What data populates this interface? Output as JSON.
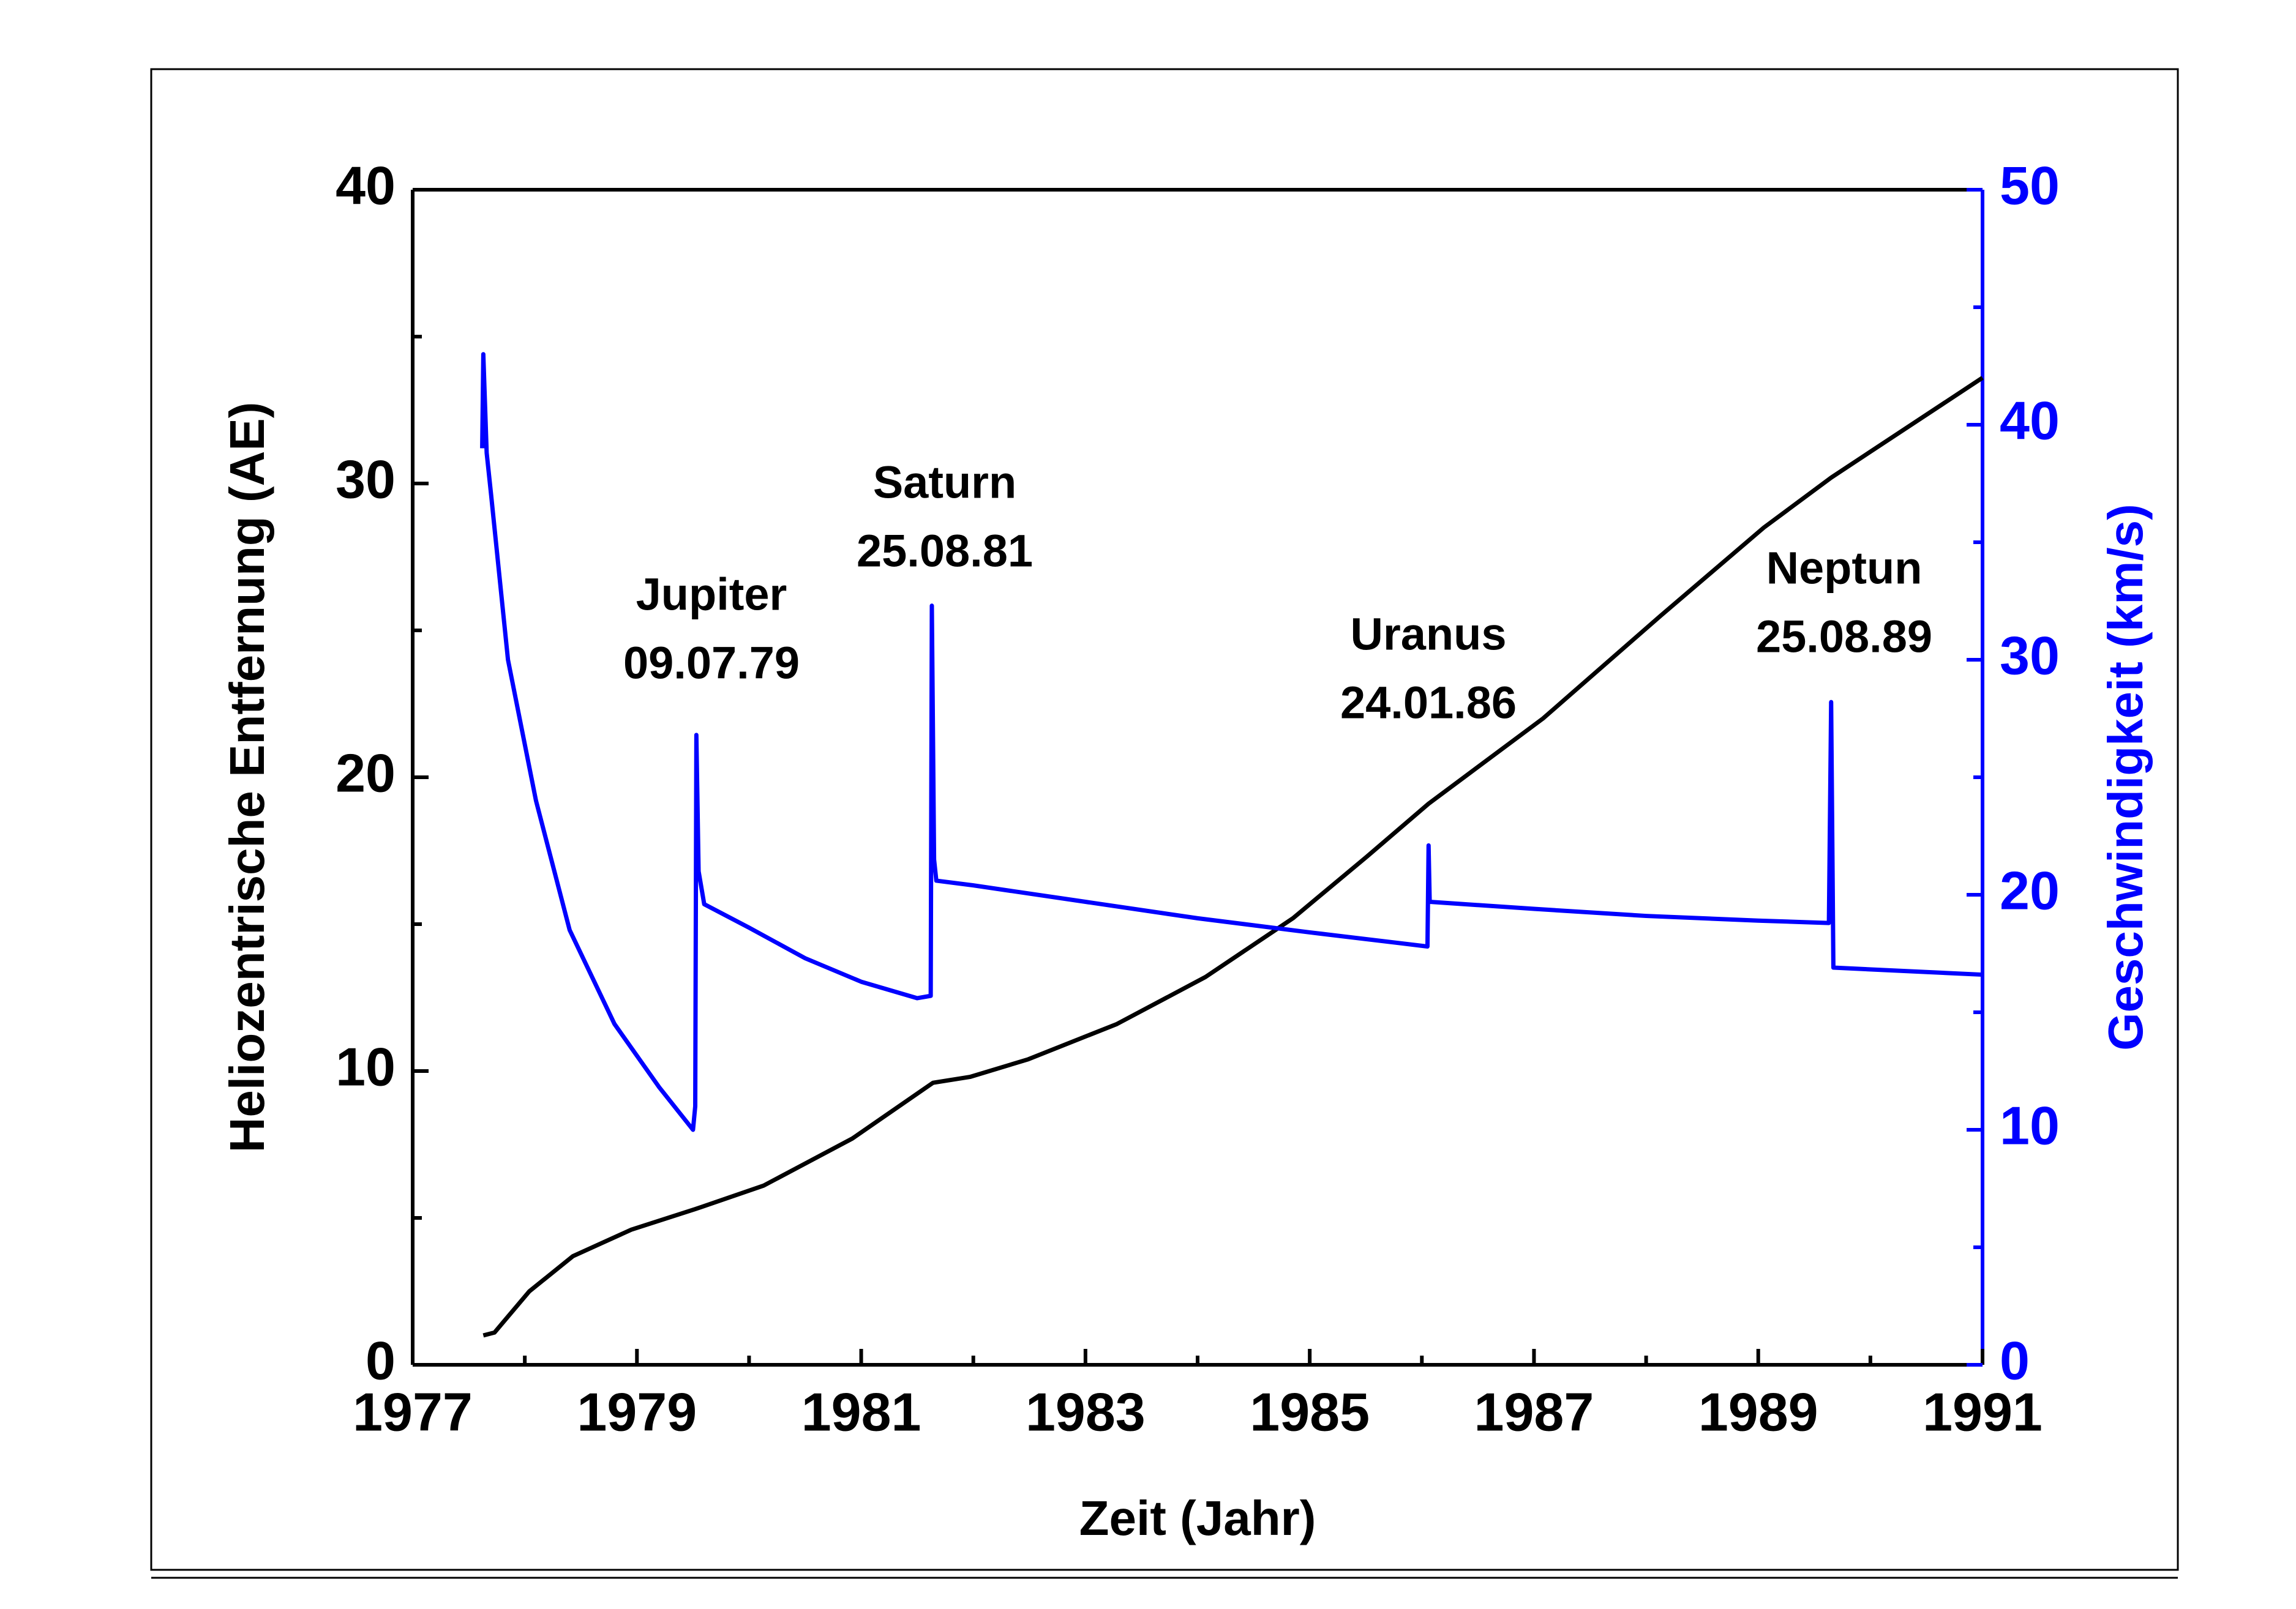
{
  "chart_data": {
    "type": "line",
    "xlabel": "Zeit (Jahr)",
    "ylabel": "Heliozentrische Entfernung (AE)",
    "y2label": "Geschwindigkeit (km/s)",
    "xlim": [
      1977,
      1991
    ],
    "xticks": [
      1977,
      1979,
      1981,
      1983,
      1985,
      1987,
      1989,
      1991
    ],
    "ylim": [
      0,
      40
    ],
    "yticks": [
      0,
      10,
      20,
      30,
      40
    ],
    "y2lim": [
      0,
      50
    ],
    "y2ticks": [
      0,
      10,
      20,
      30,
      40,
      50
    ],
    "series": [
      {
        "color": "#000000",
        "x": [
          1977.63,
          1977.73,
          1978.04,
          1978.43,
          1978.95,
          1979.52,
          1980.13,
          1980.92,
          1981.64,
          1981.97,
          1982.49,
          1983.28,
          1984.07,
          1984.85,
          1985.51,
          1986.06,
          1987.08,
          1988.13,
          1989.05,
          1989.65,
          1991
        ],
        "values": [
          1.0,
          1.1,
          2.5,
          3.7,
          4.6,
          5.3,
          6.1,
          7.7,
          9.6,
          9.8,
          10.4,
          11.6,
          13.2,
          15.2,
          17.3,
          19.1,
          22.0,
          25.5,
          28.5,
          30.2,
          33.6
        ]
      },
      {
        "color": "#0000ff",
        "axis": "y2",
        "x": [
          1977.62,
          1977.63,
          1977.66,
          1977.7,
          1977.85,
          1978.1,
          1978.4,
          1978.8,
          1979.2,
          1979.5,
          1979.52,
          1979.53,
          1979.55,
          1979.6,
          1980.0,
          1980.5,
          1981.0,
          1981.5,
          1981.62,
          1981.63,
          1981.65,
          1981.67,
          1982.0,
          1983.0,
          1984.0,
          1985.0,
          1986.05,
          1986.06,
          1986.07,
          1987.0,
          1988.0,
          1989.0,
          1989.63,
          1989.65,
          1989.67,
          1991
        ],
        "values": [
          39.0,
          43.0,
          38.8,
          37.0,
          30.0,
          24.0,
          18.5,
          14.5,
          11.8,
          10.0,
          11.0,
          26.8,
          21.0,
          19.6,
          18.6,
          17.3,
          16.3,
          15.6,
          15.7,
          32.3,
          21.5,
          20.6,
          20.4,
          19.7,
          19.0,
          18.4,
          17.8,
          22.1,
          19.7,
          19.4,
          19.1,
          18.9,
          18.8,
          28.2,
          16.9,
          16.6
        ]
      }
    ],
    "annotations": [
      [
        "Jupiter",
        "09.07.79"
      ],
      [
        "Saturn",
        "25.08.81"
      ],
      [
        "Uranus",
        "24.01.86"
      ],
      [
        "Neptun",
        "25.08.89"
      ]
    ]
  }
}
